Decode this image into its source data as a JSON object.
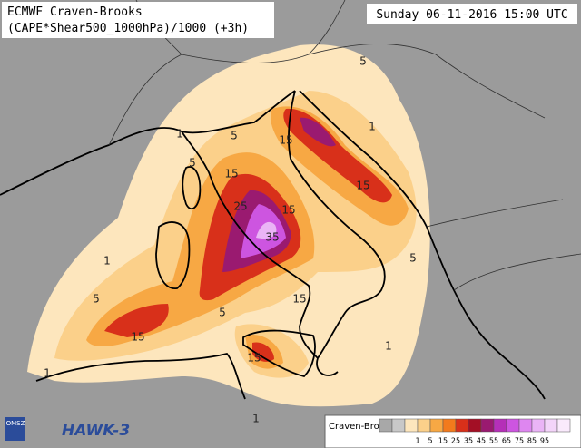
{
  "header": {
    "title": "ECMWF Craven-Brooks",
    "subtitle": "(CAPE*Shear500_1000hPa)/1000 (+3h)",
    "timestamp": "Sunday 06-11-2016 15:00 UTC"
  },
  "legend": {
    "title": "Craven-Brooks",
    "ticks": [
      1,
      5,
      15,
      25,
      35,
      45,
      55,
      65,
      75,
      85,
      95
    ],
    "colors": [
      "#a8a8a8",
      "#c8c8c8",
      "#fde6bd",
      "#fbd08a",
      "#f7a844",
      "#f27a1c",
      "#d8301a",
      "#a30f25",
      "#9a1a70",
      "#b52fb8",
      "#cd55e0",
      "#de86f0",
      "#eab4f6",
      "#f3d4f9",
      "#faeafc"
    ]
  },
  "contour_labels": [
    1,
    5,
    5,
    15,
    15,
    25,
    35,
    15,
    15,
    15,
    5,
    1,
    1,
    5,
    15,
    15,
    5,
    5,
    1,
    1,
    1
  ],
  "logos": {
    "agency": "OMSZ",
    "product": "HAWK-3"
  }
}
